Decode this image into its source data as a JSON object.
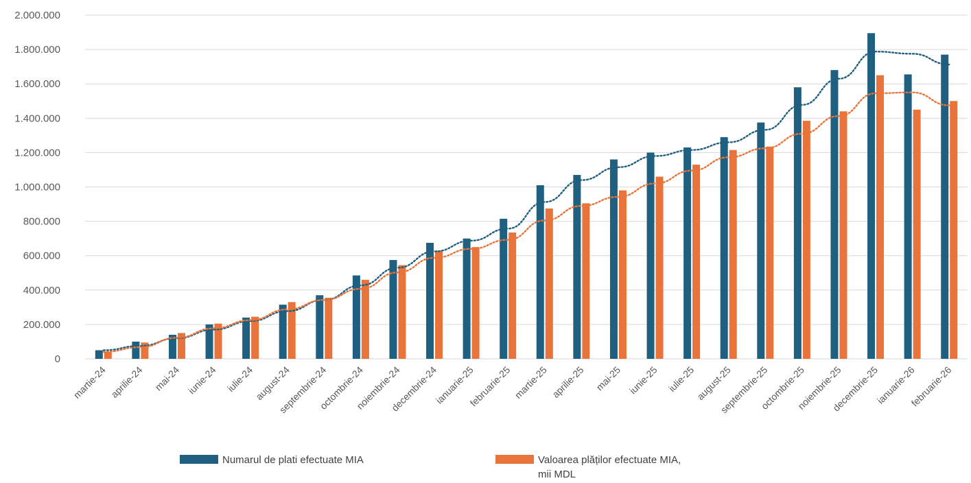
{
  "chart_data": {
    "type": "bar",
    "categories": [
      "martie-24",
      "aprilie-24",
      "mai-24",
      "iunie-24",
      "iulie-24",
      "august-24",
      "septembrie-24",
      "octombrie-24",
      "noiembrie-24",
      "decembrie-24",
      "ianuarie-25",
      "februarie-25",
      "martie-25",
      "aprilie-25",
      "mai-25",
      "iunie-25",
      "iulie-25",
      "august-25",
      "septembrie-25",
      "octombrie-25",
      "noiembrie-25",
      "decembrie-25",
      "ianuarie-26",
      "februarie-26"
    ],
    "series": [
      {
        "name": "Numarul de plati efectuate MIA",
        "color": "#1f5f7f",
        "values": [
          50000,
          100000,
          140000,
          200000,
          240000,
          315000,
          370000,
          485000,
          575000,
          675000,
          700000,
          815000,
          1010000,
          1070000,
          1160000,
          1200000,
          1230000,
          1290000,
          1375000,
          1580000,
          1680000,
          1895000,
          1655000,
          1770000
        ]
      },
      {
        "name": "Valoarea plăților efectuate MIA, mii MDL",
        "color": "#e8743b",
        "values": [
          40000,
          95000,
          150000,
          205000,
          245000,
          330000,
          355000,
          460000,
          545000,
          630000,
          650000,
          735000,
          875000,
          905000,
          980000,
          1060000,
          1130000,
          1215000,
          1235000,
          1385000,
          1440000,
          1650000,
          1450000,
          1500000
        ]
      }
    ],
    "trendlines": true,
    "ylim": [
      0,
      2000000
    ],
    "yticks": [
      0,
      200000,
      400000,
      600000,
      800000,
      1000000,
      1200000,
      1400000,
      1600000,
      1800000,
      2000000
    ],
    "ytick_labels": [
      "0",
      "200.000",
      "400.000",
      "600.000",
      "800.000",
      "1.000.000",
      "1.200.000",
      "1.400.000",
      "1.600.000",
      "1.800.000",
      "2.000.000"
    ],
    "grid": true,
    "legend_position": "bottom",
    "title": "",
    "xlabel": "",
    "ylabel": ""
  },
  "legend": {
    "item1_label": "Numarul de plati efectuate MIA",
    "item2_label": "Valoarea plăților efectuate MIA,\nmii MDL",
    "item1_color": "#1f5f7f",
    "item2_color": "#e8743b"
  }
}
